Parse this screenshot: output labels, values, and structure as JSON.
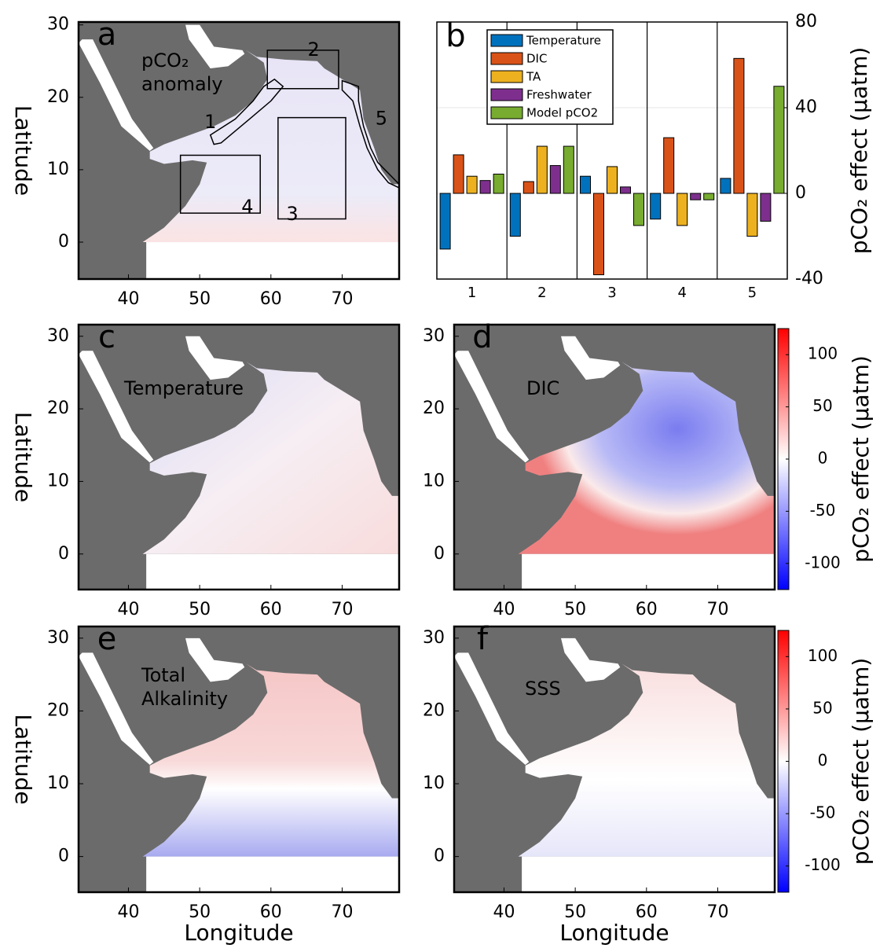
{
  "chart_data": [
    {
      "type": "map",
      "panel": "a",
      "label": [
        "pCO₂",
        "anomaly"
      ],
      "ylabel": "Latitude",
      "xlim": [
        33,
        78
      ],
      "ylim": [
        -5.1,
        30.4
      ],
      "xticks": [
        40,
        50,
        60,
        70
      ],
      "yticks": [
        0,
        10,
        20,
        30
      ],
      "annotations": [
        "1",
        "2",
        "3",
        "4",
        "5"
      ]
    },
    {
      "type": "bar",
      "panel": "b",
      "categories": [
        "1",
        "2",
        "3",
        "4",
        "5"
      ],
      "ylabel": "pCO₂ effect (µatm)",
      "ylim": [
        -40,
        80
      ],
      "yticks": [
        -40,
        0,
        40,
        80
      ],
      "legend": "upper left",
      "series": [
        {
          "name": "Temperature",
          "color": "#0072bd",
          "values": [
            -26,
            -20,
            8,
            -12,
            7
          ]
        },
        {
          "name": "DIC",
          "color": "#d95319",
          "values": [
            18,
            5.5,
            -38,
            26,
            63
          ]
        },
        {
          "name": "TA",
          "color": "#edb120",
          "values": [
            8,
            22,
            12.5,
            -15,
            -20
          ]
        },
        {
          "name": "Freshwater",
          "color": "#7e2f8e",
          "values": [
            6,
            13,
            3,
            -3,
            -13
          ]
        },
        {
          "name": "Model pCO2",
          "color": "#77ac30",
          "values": [
            9,
            22,
            -15,
            -3,
            50
          ]
        }
      ]
    },
    {
      "type": "map",
      "panel": "c",
      "label": [
        "Temperature"
      ],
      "ylabel": "Latitude",
      "xlim": [
        33,
        78
      ],
      "ylim": [
        -4.9,
        31.6
      ],
      "xticks": [
        40,
        50,
        60,
        70
      ],
      "yticks": [
        0,
        10,
        20,
        30
      ]
    },
    {
      "type": "map",
      "panel": "d",
      "label": [
        "DIC"
      ],
      "xlim": [
        33,
        78
      ],
      "ylim": [
        -4.9,
        31.6
      ],
      "xticks": [
        40,
        50,
        60,
        70
      ],
      "yticks": [
        0,
        10,
        20,
        30
      ]
    },
    {
      "type": "colorbar",
      "ylabel": "pCO₂ effect (µatm)",
      "ylim": [
        -125,
        125
      ],
      "yticks": [
        -100,
        -50,
        0,
        50,
        100
      ],
      "colors": [
        "#0000ff",
        "#ffffff",
        "#ff0000"
      ]
    },
    {
      "type": "map",
      "panel": "e",
      "label": [
        "Total",
        "Alkalinity"
      ],
      "ylabel": "Latitude",
      "xlabel": "Longitude",
      "xlim": [
        33,
        78
      ],
      "ylim": [
        -4.9,
        31.6
      ],
      "xticks": [
        40,
        50,
        60,
        70
      ],
      "yticks": [
        0,
        10,
        20,
        30
      ]
    },
    {
      "type": "map",
      "panel": "f",
      "label": [
        "SSS"
      ],
      "xlabel": "Longitude",
      "xlim": [
        33,
        78
      ],
      "ylim": [
        -4.9,
        31.6
      ],
      "xticks": [
        40,
        50,
        60,
        70
      ],
      "yticks": [
        0,
        10,
        20,
        30
      ]
    },
    {
      "type": "colorbar",
      "ylabel": "pCO₂ effect (µatm)",
      "ylim": [
        -125,
        125
      ],
      "yticks": [
        -100,
        -50,
        0,
        50,
        100
      ],
      "colors": [
        "#0000ff",
        "#ffffff",
        "#ff0000"
      ]
    }
  ]
}
